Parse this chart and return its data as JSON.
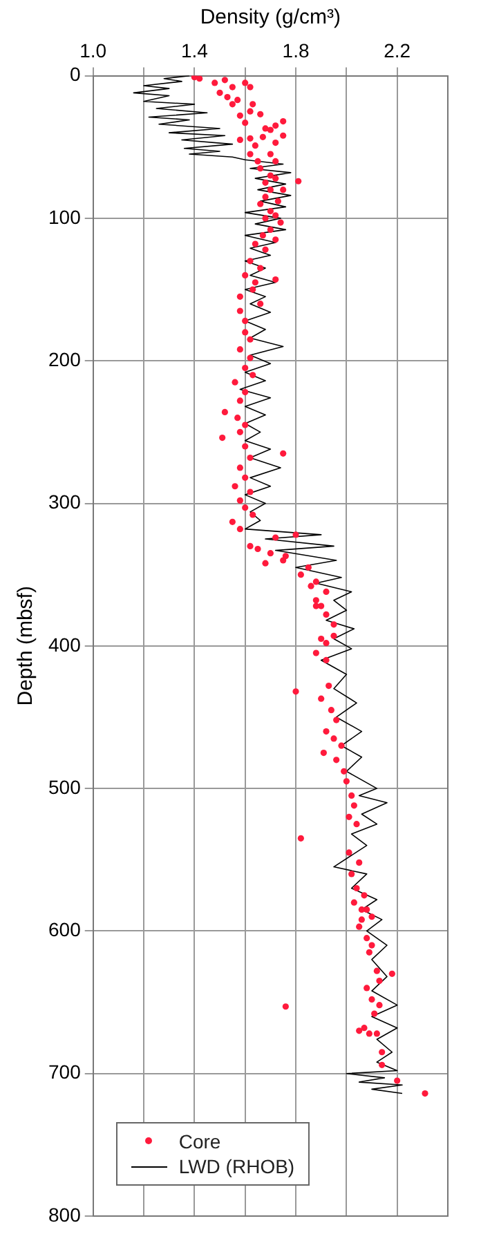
{
  "chart_data": {
    "type": "scatter",
    "xlabel": "Density (g/cm³)",
    "ylabel": "Depth (mbsf)",
    "xlim": [
      1.0,
      2.4
    ],
    "xticks": [
      {
        "value": 1.0,
        "label": "1.0"
      },
      {
        "value": 1.2,
        "label": null
      },
      1.4,
      {
        "value": 1.6,
        "label": null
      },
      1.8,
      {
        "value": 2.0,
        "label": null
      },
      2.2
    ],
    "ylim": [
      800,
      0
    ],
    "yticks": [
      0,
      100,
      200,
      300,
      400,
      500,
      600,
      700,
      800
    ],
    "grid": true,
    "legend": "bottom left",
    "series": [
      {
        "name": "Core",
        "type": "scatter",
        "marker": "circle",
        "color": "#ff1a3c",
        "x": [
          1.4,
          1.42,
          1.48,
          1.52,
          1.55,
          1.6,
          1.62,
          1.5,
          1.53,
          1.57,
          1.55,
          1.63,
          1.62,
          1.58,
          1.66,
          1.6,
          1.72,
          1.75,
          1.7,
          1.68,
          1.75,
          1.62,
          1.67,
          1.58,
          1.72,
          1.64,
          1.62,
          1.7,
          1.65,
          1.72,
          1.66,
          1.7,
          1.68,
          1.72,
          1.81,
          1.7,
          1.75,
          1.68,
          1.73,
          1.66,
          1.7,
          1.72,
          1.68,
          1.74,
          1.7,
          1.67,
          1.72,
          1.64,
          1.68,
          1.62,
          1.66,
          1.6,
          1.64,
          1.72,
          1.63,
          1.58,
          1.66,
          1.58,
          1.6,
          1.6,
          1.62,
          1.58,
          1.62,
          1.6,
          1.63,
          1.56,
          1.6,
          1.58,
          1.52,
          1.57,
          1.6,
          1.51,
          1.58,
          1.6,
          1.75,
          1.62,
          1.58,
          1.6,
          1.56,
          1.62,
          1.58,
          1.6,
          1.63,
          1.55,
          1.58,
          1.8,
          1.72,
          1.62,
          1.65,
          1.7,
          1.76,
          1.68,
          1.75,
          1.85,
          1.82,
          1.88,
          1.86,
          1.92,
          1.88,
          1.9,
          1.88,
          1.92,
          1.95,
          1.9,
          1.92,
          1.95,
          1.88,
          1.92,
          1.8,
          1.9,
          1.93,
          1.94,
          1.96,
          1.92,
          1.95,
          1.98,
          1.91,
          1.96,
          1.99,
          2.0,
          2.02,
          2.03,
          2.01,
          2.04,
          1.82,
          2.01,
          2.05,
          2.02,
          2.04,
          2.07,
          2.03,
          2.08,
          2.06,
          2.06,
          2.1,
          2.05,
          2.08,
          2.1,
          2.09,
          2.12,
          2.18,
          2.13,
          2.08,
          2.1,
          2.13,
          1.76,
          2.11,
          2.05,
          2.07,
          2.09,
          2.12,
          2.14,
          2.14,
          2.2,
          2.31
        ],
        "values": [
          1,
          2,
          5,
          3,
          8,
          5,
          8,
          12,
          15,
          17,
          20,
          20,
          25,
          28,
          27,
          33,
          35,
          32,
          38,
          37,
          42,
          44,
          43,
          45,
          47,
          49,
          55,
          55,
          60,
          60,
          65,
          70,
          75,
          72,
          74,
          80,
          80,
          85,
          88,
          90,
          95,
          98,
          100,
          103,
          108,
          112,
          115,
          118,
          122,
          130,
          135,
          140,
          145,
          143,
          150,
          155,
          160,
          165,
          172,
          180,
          185,
          192,
          198,
          205,
          210,
          215,
          222,
          228,
          236,
          240,
          245,
          254,
          250,
          260,
          265,
          268,
          275,
          282,
          288,
          292,
          298,
          303,
          308,
          313,
          318,
          322,
          324,
          330,
          332,
          335,
          337,
          342,
          340,
          345,
          350,
          355,
          358,
          362,
          368,
          372,
          372,
          378,
          385,
          395,
          398,
          393,
          405,
          410,
          432,
          437,
          428,
          445,
          452,
          460,
          465,
          470,
          475,
          480,
          488,
          495,
          505,
          512,
          520,
          525,
          535,
          545,
          552,
          560,
          570,
          575,
          580,
          585,
          592,
          585,
          590,
          597,
          605,
          610,
          615,
          628,
          630,
          635,
          640,
          648,
          652,
          653,
          658,
          670,
          668,
          672,
          672,
          685,
          694,
          705,
          714
        ]
      },
      {
        "name": "LWD (RHOB)",
        "type": "line",
        "marker": "none",
        "color": "#000000",
        "x": [
          1.38,
          1.28,
          1.35,
          1.2,
          1.3,
          1.16,
          1.3,
          1.2,
          1.4,
          1.25,
          1.45,
          1.22,
          1.38,
          1.26,
          1.5,
          1.3,
          1.52,
          1.35,
          1.55,
          1.36,
          1.5,
          1.38,
          1.55,
          1.6,
          1.75,
          1.62,
          1.78,
          1.64,
          1.76,
          1.65,
          1.78,
          1.66,
          1.76,
          1.6,
          1.74,
          1.64,
          1.76,
          1.6,
          1.72,
          1.62,
          1.7,
          1.6,
          1.68,
          1.62,
          1.72,
          1.6,
          1.68,
          1.62,
          1.7,
          1.6,
          1.68,
          1.62,
          1.75,
          1.62,
          1.7,
          1.6,
          1.68,
          1.58,
          1.7,
          1.6,
          1.68,
          1.6,
          1.66,
          1.6,
          1.7,
          1.62,
          1.74,
          1.62,
          1.7,
          1.6,
          1.68,
          1.62,
          1.66,
          1.6,
          1.9,
          1.68,
          1.95,
          1.72,
          1.96,
          1.8,
          1.98,
          1.88,
          2.02,
          1.95,
          2.0,
          1.92,
          2.03,
          1.95,
          2.02,
          1.9,
          2.0,
          1.95,
          2.04,
          1.96,
          2.06,
          1.98,
          2.06,
          2.0,
          2.12,
          2.05,
          2.16,
          2.06,
          2.12,
          2.02,
          2.08,
          1.95,
          2.08,
          2.02,
          2.12,
          2.06,
          2.14,
          2.08,
          2.16,
          2.1,
          2.16,
          2.1,
          2.2,
          2.1,
          2.2,
          2.12,
          2.18,
          2.12,
          2.2,
          2.0,
          2.15,
          2.05,
          2.22,
          2.1,
          2.22
        ],
        "values": [
          0,
          2,
          4,
          7,
          9,
          12,
          14,
          18,
          20,
          23,
          26,
          29,
          31,
          34,
          37,
          40,
          42,
          45,
          48,
          51,
          53,
          55,
          57,
          59,
          62,
          65,
          68,
          72,
          76,
          80,
          84,
          88,
          92,
          96,
          100,
          104,
          108,
          112,
          117,
          121,
          126,
          130,
          135,
          140,
          145,
          150,
          155,
          160,
          166,
          172,
          178,
          184,
          190,
          196,
          202,
          208,
          214,
          220,
          226,
          232,
          238,
          244,
          250,
          256,
          262,
          268,
          275,
          282,
          288,
          294,
          300,
          306,
          312,
          318,
          322,
          325,
          330,
          333,
          340,
          345,
          352,
          356,
          362,
          368,
          375,
          382,
          388,
          395,
          402,
          410,
          420,
          430,
          440,
          450,
          460,
          470,
          478,
          488,
          500,
          505,
          510,
          518,
          525,
          532,
          540,
          555,
          560,
          570,
          578,
          585,
          592,
          600,
          610,
          620,
          632,
          642,
          652,
          660,
          668,
          676,
          685,
          692,
          698,
          700,
          703,
          706,
          708,
          711,
          714
        ]
      }
    ]
  }
}
